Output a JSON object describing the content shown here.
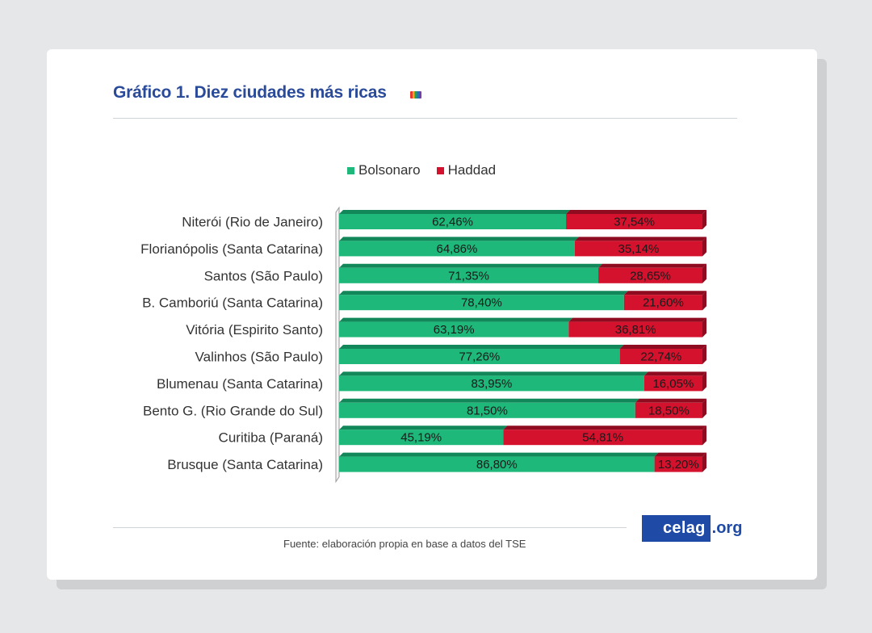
{
  "page": {
    "title": "Gráfico 1. Diez ciudades más ricas",
    "source": "Fuente: elaboración propia en base a datos del TSE",
    "logo_left": "celag",
    "logo_right": ".org"
  },
  "colors": {
    "bolsonaro": "#1db87a",
    "bolsonaro_dark": "#12875a",
    "haddad": "#d4122e",
    "haddad_dark": "#8f0c20",
    "title": "#2a4a9a"
  },
  "chart_data": {
    "type": "bar",
    "orientation": "horizontal",
    "stacked": "100%",
    "title": "Gráfico 1. Diez ciudades más ricas",
    "xlabel": "",
    "ylabel": "",
    "xlim": [
      0,
      100
    ],
    "legend_position": "top",
    "grid": false,
    "categories": [
      "Niterói (Rio de Janeiro)",
      "Florianópolis (Santa Catarina)",
      "Santos (São Paulo)",
      "B. Camboriú (Santa Catarina)",
      "Vitória (Espirito Santo)",
      "Valinhos (São Paulo)",
      "Blumenau (Santa Catarina)",
      "Bento G. (Rio Grande do Sul)",
      "Curitiba (Paraná)",
      "Brusque (Santa Catarina)"
    ],
    "series": [
      {
        "name": "Bolsonaro",
        "values": [
          62.46,
          64.86,
          71.35,
          78.4,
          63.19,
          77.26,
          83.95,
          81.5,
          45.19,
          86.8
        ],
        "labels": [
          "62,46%",
          "64,86%",
          "71,35%",
          "78,40%",
          "63,19%",
          "77,26%",
          "83,95%",
          "81,50%",
          "45,19%",
          "86,80%"
        ]
      },
      {
        "name": "Haddad",
        "values": [
          37.54,
          35.14,
          28.65,
          21.6,
          36.81,
          22.74,
          16.05,
          18.5,
          54.81,
          13.2
        ],
        "labels": [
          "37,54%",
          "35,14%",
          "28,65%",
          "21,60%",
          "36,81%",
          "22,74%",
          "16,05%",
          "18,50%",
          "54,81%",
          "13,20%"
        ]
      }
    ]
  }
}
